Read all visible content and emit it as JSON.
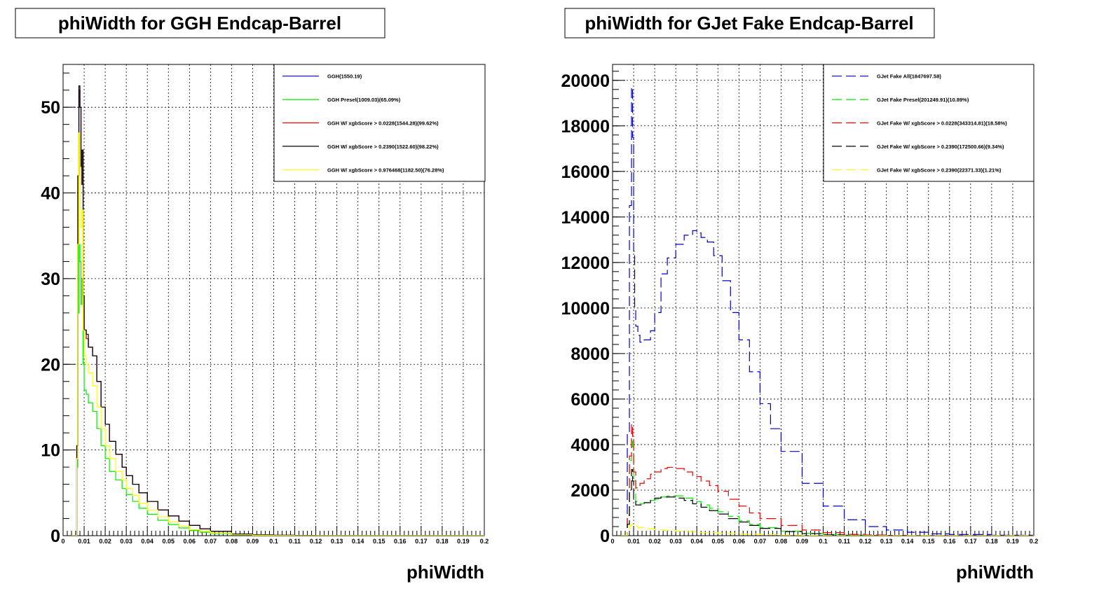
{
  "chart_data": [
    {
      "type": "line",
      "title": "phiWidth for GGH Endcap-Barrel",
      "xlabel": "phiWidth",
      "ylabel": "",
      "xlim": [
        0,
        0.2
      ],
      "ylim": [
        0,
        55
      ],
      "grid": true,
      "legend_position": "top-right",
      "x_ticks": [
        "0",
        "0.01",
        "0.02",
        "0.03",
        "0.04",
        "0.05",
        "0.06",
        "0.07",
        "0.08",
        "0.09",
        "0.1",
        "0.11",
        "0.12",
        "0.13",
        "0.14",
        "0.15",
        "0.16",
        "0.17",
        "0.18",
        "0.19",
        "0.2"
      ],
      "y_ticks": [
        "0",
        "10",
        "20",
        "30",
        "40",
        "50"
      ],
      "y_tick_values": [
        0,
        10,
        20,
        30,
        40,
        50
      ],
      "series": [
        {
          "name": "GGH(1550.19)",
          "color": "#0000cc",
          "dashed": false,
          "x": [
            0.004,
            0.005,
            0.006,
            0.0065,
            0.007,
            0.0075,
            0.008,
            0.0085,
            0.009,
            0.0095,
            0.01,
            0.011,
            0.012,
            0.014,
            0.016,
            0.018,
            0.02,
            0.022,
            0.025,
            0.028,
            0.03,
            0.033,
            0.036,
            0.04,
            0.045,
            0.05,
            0.055,
            0.06,
            0.065,
            0.07,
            0.08,
            0.09,
            0.1,
            0.11,
            0.12,
            0.15,
            0.2
          ],
          "y": [
            0,
            0,
            0,
            10.5,
            42,
            52,
            50,
            41,
            45,
            28,
            24,
            23,
            22,
            21,
            18,
            15,
            13,
            11,
            9.5,
            8,
            7,
            6,
            5,
            4,
            3,
            2.3,
            1.7,
            1.2,
            0.8,
            0.5,
            0.2,
            0.1,
            0.05,
            0.02,
            0,
            0,
            0
          ]
        },
        {
          "name": "GGH Presel(1009.03)(65.09%)",
          "color": "#00ee00",
          "dashed": false,
          "x": [
            0.004,
            0.005,
            0.006,
            0.0065,
            0.007,
            0.0075,
            0.008,
            0.0085,
            0.009,
            0.0095,
            0.01,
            0.011,
            0.012,
            0.014,
            0.016,
            0.018,
            0.02,
            0.022,
            0.025,
            0.028,
            0.03,
            0.033,
            0.036,
            0.04,
            0.045,
            0.05,
            0.055,
            0.06,
            0.065,
            0.07,
            0.08,
            0.09,
            0.1,
            0.11,
            0.12,
            0.15,
            0.2
          ],
          "y": [
            0,
            0,
            0,
            8,
            26,
            34,
            32,
            27,
            30,
            20,
            17,
            16.5,
            15.5,
            14.5,
            12.5,
            10.5,
            9,
            7.5,
            6.5,
            5.5,
            4.8,
            4,
            3.2,
            2.5,
            1.8,
            1.3,
            0.9,
            0.6,
            0.4,
            0.25,
            0.1,
            0.05,
            0.02,
            0.01,
            0,
            0,
            0
          ]
        },
        {
          "name": "GGH W/ xgbScore > 0.0228(1544.28)(99.62%)",
          "color": "#ee0000",
          "dashed": false,
          "x": [
            0.004,
            0.005,
            0.006,
            0.0065,
            0.007,
            0.0075,
            0.008,
            0.0085,
            0.009,
            0.0095,
            0.01,
            0.011,
            0.012,
            0.014,
            0.016,
            0.018,
            0.02,
            0.022,
            0.025,
            0.028,
            0.03,
            0.033,
            0.036,
            0.04,
            0.045,
            0.05,
            0.055,
            0.06,
            0.065,
            0.07,
            0.08,
            0.09,
            0.1,
            0.11,
            0.12,
            0.15,
            0.2
          ],
          "y": [
            0,
            0,
            0,
            10.5,
            42,
            52,
            50,
            41,
            45,
            28,
            24,
            23,
            22,
            21,
            18,
            15,
            13,
            11,
            9.5,
            8,
            7,
            6,
            5,
            4,
            3,
            2.3,
            1.7,
            1.2,
            0.8,
            0.5,
            0.2,
            0.1,
            0.05,
            0.02,
            0,
            0,
            0
          ]
        },
        {
          "name": "GGH W/ xgbScore > 0.2390(1522.60)(98.22%)",
          "color": "#000000",
          "dashed": false,
          "x": [
            0.004,
            0.005,
            0.006,
            0.0065,
            0.007,
            0.0075,
            0.008,
            0.0085,
            0.009,
            0.0095,
            0.01,
            0.011,
            0.012,
            0.014,
            0.016,
            0.018,
            0.02,
            0.022,
            0.025,
            0.028,
            0.03,
            0.033,
            0.036,
            0.04,
            0.045,
            0.05,
            0.055,
            0.06,
            0.065,
            0.07,
            0.08,
            0.09,
            0.1,
            0.11,
            0.12,
            0.15,
            0.2
          ],
          "y": [
            0,
            0,
            0,
            10.5,
            42,
            52.5,
            50,
            41,
            45,
            28,
            24,
            23.5,
            22,
            21,
            18,
            15,
            13,
            11,
            9.5,
            8,
            7,
            6,
            5,
            4,
            3,
            2.3,
            1.7,
            1.2,
            0.8,
            0.5,
            0.2,
            0.1,
            0.05,
            0.02,
            0,
            0,
            0
          ]
        },
        {
          "name": "GGH W/ xgbScore > 0.976468(1182.50)(76.28%)",
          "color": "#ffff00",
          "dashed": false,
          "x": [
            0.004,
            0.005,
            0.006,
            0.0065,
            0.007,
            0.0075,
            0.008,
            0.0085,
            0.009,
            0.0095,
            0.01,
            0.011,
            0.012,
            0.014,
            0.016,
            0.018,
            0.02,
            0.022,
            0.025,
            0.028,
            0.03,
            0.033,
            0.036,
            0.04,
            0.045,
            0.05,
            0.055,
            0.06,
            0.065,
            0.07,
            0.08,
            0.09,
            0.1,
            0.11,
            0.12,
            0.15,
            0.2
          ],
          "y": [
            0,
            0,
            0,
            9,
            34,
            47,
            43,
            36,
            38,
            24,
            21,
            20,
            19,
            17.5,
            15,
            12.5,
            10.5,
            9,
            7.5,
            6.5,
            5.5,
            4.7,
            3.8,
            3,
            2.2,
            1.6,
            1.1,
            0.7,
            0.5,
            0.3,
            0.1,
            0.05,
            0.02,
            0,
            0,
            0,
            0
          ]
        }
      ]
    },
    {
      "type": "line",
      "title": "phiWidth for GJet Fake Endcap-Barrel",
      "xlabel": "phiWidth",
      "ylabel": "",
      "xlim": [
        0,
        0.2
      ],
      "ylim": [
        0,
        20700
      ],
      "grid": true,
      "legend_position": "top-right",
      "x_ticks": [
        "0",
        "0.01",
        "0.02",
        "0.03",
        "0.04",
        "0.05",
        "0.06",
        "0.07",
        "0.08",
        "0.09",
        "0.1",
        "0.11",
        "0.12",
        "0.13",
        "0.14",
        "0.15",
        "0.16",
        "0.17",
        "0.18",
        "0.19",
        "0.2"
      ],
      "y_ticks": [
        "0",
        "2000",
        "4000",
        "6000",
        "8000",
        "10000",
        "12000",
        "14000",
        "16000",
        "18000",
        "20000"
      ],
      "y_tick_values": [
        0,
        2000,
        4000,
        6000,
        8000,
        10000,
        12000,
        14000,
        16000,
        18000,
        20000
      ],
      "series": [
        {
          "name": "GJet Fake All(1847697.58)",
          "color": "#0000cc",
          "dashed": true,
          "x": [
            0.004,
            0.005,
            0.006,
            0.007,
            0.008,
            0.009,
            0.0095,
            0.01,
            0.0105,
            0.011,
            0.012,
            0.013,
            0.015,
            0.018,
            0.02,
            0.023,
            0.026,
            0.03,
            0.034,
            0.038,
            0.04,
            0.042,
            0.045,
            0.048,
            0.052,
            0.056,
            0.06,
            0.065,
            0.07,
            0.075,
            0.08,
            0.09,
            0.1,
            0.11,
            0.12,
            0.13,
            0.14,
            0.15,
            0.16,
            0.18,
            0.2
          ],
          "y": [
            0,
            0,
            0,
            4500,
            14500,
            19700,
            17500,
            12500,
            10000,
            9200,
            8800,
            8500,
            8600,
            9000,
            9800,
            11500,
            12200,
            12800,
            13200,
            13400,
            13300,
            13100,
            12900,
            12300,
            11200,
            9800,
            8600,
            7200,
            5800,
            4700,
            3700,
            2300,
            1300,
            700,
            400,
            250,
            150,
            80,
            50,
            20,
            10
          ]
        },
        {
          "name": "GJet Fake Presel(201249.91)(10.89%)",
          "color": "#00ee00",
          "dashed": true,
          "x": [
            0.004,
            0.005,
            0.006,
            0.007,
            0.008,
            0.009,
            0.0095,
            0.01,
            0.011,
            0.013,
            0.015,
            0.018,
            0.02,
            0.023,
            0.026,
            0.03,
            0.034,
            0.038,
            0.042,
            0.046,
            0.05,
            0.055,
            0.06,
            0.065,
            0.07,
            0.08,
            0.09,
            0.1,
            0.11,
            0.12,
            0.14,
            0.2
          ],
          "y": [
            0,
            0,
            0,
            800,
            3300,
            4600,
            3900,
            2400,
            1500,
            1400,
            1450,
            1550,
            1600,
            1700,
            1750,
            1750,
            1650,
            1500,
            1350,
            1200,
            1050,
            850,
            650,
            500,
            350,
            200,
            100,
            50,
            20,
            10,
            0,
            0
          ]
        },
        {
          "name": "GJet Fake W/ xgbScore > 0.0228(343314.81)(18.58%)",
          "color": "#ee0000",
          "dashed": true,
          "x": [
            0.004,
            0.005,
            0.006,
            0.007,
            0.008,
            0.009,
            0.0095,
            0.01,
            0.011,
            0.013,
            0.015,
            0.018,
            0.02,
            0.023,
            0.026,
            0.03,
            0.034,
            0.038,
            0.042,
            0.046,
            0.05,
            0.055,
            0.06,
            0.065,
            0.07,
            0.08,
            0.09,
            0.1,
            0.11,
            0.12,
            0.13,
            0.14,
            0.2
          ],
          "y": [
            0,
            0,
            0,
            900,
            3500,
            4900,
            4200,
            2800,
            2100,
            2300,
            2500,
            2700,
            2800,
            2950,
            3000,
            2950,
            2800,
            2600,
            2400,
            2200,
            1950,
            1600,
            1300,
            1000,
            750,
            450,
            250,
            130,
            60,
            30,
            10,
            0,
            0
          ]
        },
        {
          "name": "GJet Fake W/ xgbScore > 0.2390(172500.66)(9.34%)",
          "color": "#000000",
          "dashed": true,
          "x": [
            0.004,
            0.005,
            0.006,
            0.007,
            0.008,
            0.009,
            0.0095,
            0.01,
            0.011,
            0.013,
            0.015,
            0.018,
            0.02,
            0.023,
            0.026,
            0.03,
            0.034,
            0.038,
            0.042,
            0.046,
            0.05,
            0.055,
            0.06,
            0.065,
            0.07,
            0.08,
            0.09,
            0.1,
            0.11,
            0.12,
            0.14,
            0.2
          ],
          "y": [
            0,
            0,
            0,
            500,
            1900,
            2900,
            2400,
            1600,
            1350,
            1350,
            1450,
            1550,
            1650,
            1700,
            1700,
            1650,
            1550,
            1400,
            1250,
            1100,
            950,
            750,
            600,
            450,
            320,
            180,
            90,
            40,
            20,
            10,
            0,
            0
          ]
        },
        {
          "name": "GJet Fake W/ xgbScore > 0.2390(22371.33)(1.21%)",
          "color": "#ffff00",
          "dashed": true,
          "x": [
            0.004,
            0.005,
            0.006,
            0.007,
            0.008,
            0.009,
            0.01,
            0.012,
            0.015,
            0.02,
            0.025,
            0.03,
            0.035,
            0.04,
            0.05,
            0.06,
            0.07,
            0.08,
            0.09,
            0.1,
            0.2
          ],
          "y": [
            0,
            0,
            0,
            200,
            450,
            500,
            420,
            350,
            300,
            260,
            230,
            200,
            170,
            140,
            100,
            70,
            45,
            25,
            10,
            5,
            0
          ]
        }
      ]
    }
  ]
}
